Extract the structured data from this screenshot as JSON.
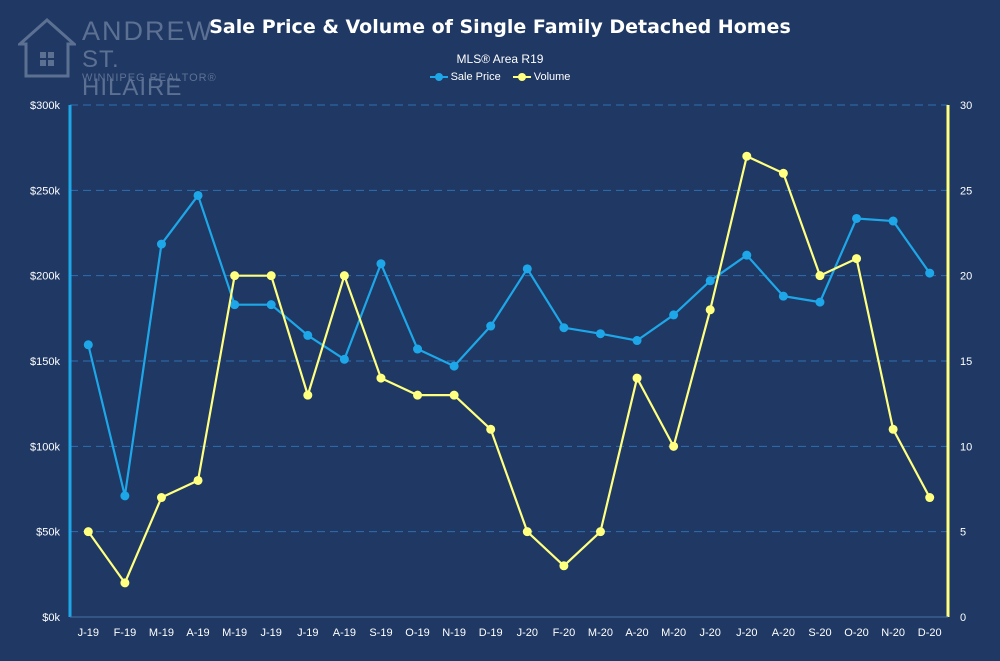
{
  "logo": {
    "line1": "ANDREW",
    "line2": "ST. HILAIRE",
    "line3": "WINNIPEG REALTOR®",
    "icon": "house-icon"
  },
  "chart_data": {
    "type": "line",
    "title": "Sale Price & Volume of Single Family Detached Homes",
    "subtitle": "MLS® Area R19",
    "categories": [
      "J-19",
      "F-19",
      "M-19",
      "A-19",
      "M-19",
      "J-19",
      "J-19",
      "A-19",
      "S-19",
      "O-19",
      "N-19",
      "D-19",
      "J-20",
      "F-20",
      "M-20",
      "A-20",
      "M-20",
      "J-20",
      "J-20",
      "A-20",
      "S-20",
      "O-20",
      "N-20",
      "D-20"
    ],
    "series": [
      {
        "name": "Sale Price",
        "axis": "left",
        "color": "#1ea7e8",
        "values": [
          159500,
          71000,
          218500,
          247000,
          183000,
          183000,
          165000,
          151000,
          207000,
          157000,
          147000,
          170500,
          204000,
          169500,
          166000,
          162000,
          177000,
          197000,
          212000,
          188000,
          184500,
          233500,
          232000,
          201500
        ]
      },
      {
        "name": "Volume",
        "axis": "right",
        "color": "#ffff80",
        "values": [
          5,
          2,
          7,
          8,
          20,
          20,
          13,
          20,
          14,
          13,
          13,
          11,
          5,
          3,
          5,
          14,
          10,
          18,
          27,
          26,
          20,
          21,
          11,
          7
        ]
      }
    ],
    "y_left": {
      "min": 0,
      "max": 300000,
      "ticks": [
        "$0k",
        "$50k",
        "$100k",
        "$150k",
        "$200k",
        "$250k",
        "$300k"
      ]
    },
    "y_right": {
      "min": 0,
      "max": 30,
      "ticks": [
        "0",
        "5",
        "10",
        "15",
        "20",
        "25",
        "30"
      ]
    },
    "grid": true,
    "legend_position": "top-center",
    "colors": {
      "background": "#1f3864",
      "grid": "#2f6fb0",
      "left_axis": "#1ea7e8",
      "right_axis": "#ffff80",
      "text": "#ffffff"
    }
  }
}
